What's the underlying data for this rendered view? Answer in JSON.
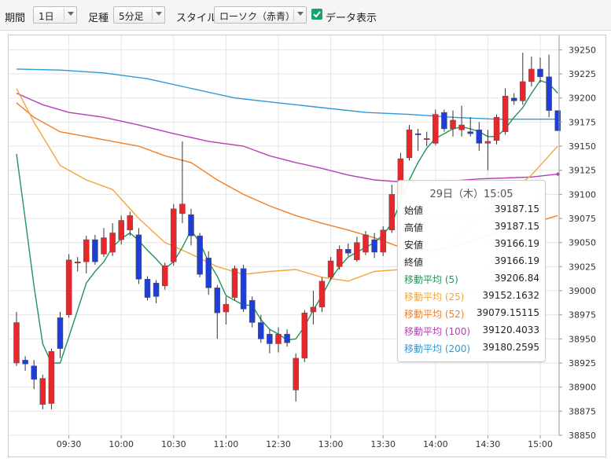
{
  "toolbar": {
    "period_label": "期間",
    "period_value": "1日",
    "ashi_label": "足種",
    "ashi_value": "5分足",
    "style_label": "スタイル",
    "style_value": "ローソク（赤青）",
    "data_display_label": "データ表示",
    "data_display_checked": true
  },
  "colors": {
    "up": "#e8262b",
    "down": "#1f3ed6",
    "ma5": "#21935a",
    "ma25": "#f2a53a",
    "ma52": "#f07f27",
    "ma100": "#b63fb6",
    "ma200": "#2d98da"
  },
  "tooltip": {
    "title": "29日（木）15:05",
    "rows": [
      {
        "label": "始値",
        "value": "39187.15"
      },
      {
        "label": "高値",
        "value": "39187.15"
      },
      {
        "label": "安値",
        "value": "39166.19"
      },
      {
        "label": "終値",
        "value": "39166.19"
      },
      {
        "label": "移動平均 (5)",
        "value": "39206.84"
      },
      {
        "label": "移動平均 (25)",
        "value": "39152.1632"
      },
      {
        "label": "移動平均 (52)",
        "value": "39079.15115"
      },
      {
        "label": "移動平均 (100)",
        "value": "39120.4033"
      },
      {
        "label": "移動平均 (200)",
        "value": "39180.2595"
      }
    ]
  },
  "chart_data": {
    "type": "candlestick",
    "interval": "5分足",
    "ylim": [
      38850,
      39265
    ],
    "y_ticks": [
      38850,
      38875,
      38900,
      38925,
      38950,
      38975,
      39000,
      39025,
      39050,
      39075,
      39100,
      39125,
      39150,
      39175,
      39200,
      39225,
      39250
    ],
    "x_ticks": [
      {
        "label": "09:30",
        "bar": 6
      },
      {
        "label": "10:00",
        "bar": 12
      },
      {
        "label": "10:30",
        "bar": 18
      },
      {
        "label": "11:00",
        "bar": 24
      },
      {
        "label": "12:30",
        "bar": 30
      },
      {
        "label": "13:00",
        "bar": 36
      },
      {
        "label": "13:30",
        "bar": 42
      },
      {
        "label": "14:00",
        "bar": 48
      },
      {
        "label": "14:30",
        "bar": 54
      },
      {
        "label": "15:00",
        "bar": 60
      }
    ],
    "candles": [
      {
        "o": 38925,
        "h": 38978,
        "l": 38922,
        "c": 38967
      },
      {
        "o": 38928,
        "h": 38932,
        "l": 38917,
        "c": 38924
      },
      {
        "o": 38922,
        "h": 38928,
        "l": 38898,
        "c": 38908
      },
      {
        "o": 38882,
        "h": 38913,
        "l": 38877,
        "c": 38909
      },
      {
        "o": 38883,
        "h": 38940,
        "l": 38877,
        "c": 38937
      },
      {
        "o": 38972,
        "h": 38978,
        "l": 38930,
        "c": 38940
      },
      {
        "o": 38975,
        "h": 39038,
        "l": 38972,
        "c": 39032
      },
      {
        "o": 39029,
        "h": 39035,
        "l": 39020,
        "c": 39030
      },
      {
        "o": 39030,
        "h": 39057,
        "l": 39018,
        "c": 39053
      },
      {
        "o": 39053,
        "h": 39058,
        "l": 39027,
        "c": 39030
      },
      {
        "o": 39038,
        "h": 39065,
        "l": 39035,
        "c": 39055
      },
      {
        "o": 39040,
        "h": 39070,
        "l": 39036,
        "c": 39060
      },
      {
        "o": 39053,
        "h": 39078,
        "l": 39048,
        "c": 39073
      },
      {
        "o": 39063,
        "h": 39082,
        "l": 39057,
        "c": 39078
      },
      {
        "o": 39058,
        "h": 39065,
        "l": 39007,
        "c": 39012
      },
      {
        "o": 39012,
        "h": 39015,
        "l": 38990,
        "c": 38993
      },
      {
        "o": 39008,
        "h": 39011,
        "l": 38987,
        "c": 38994
      },
      {
        "o": 39005,
        "h": 39029,
        "l": 39001,
        "c": 39026
      },
      {
        "o": 39030,
        "h": 39090,
        "l": 39026,
        "c": 39085
      },
      {
        "o": 39080,
        "h": 39155,
        "l": 39070,
        "c": 39090
      },
      {
        "o": 39079,
        "h": 39085,
        "l": 39047,
        "c": 39057
      },
      {
        "o": 39057,
        "h": 39060,
        "l": 39014,
        "c": 39017
      },
      {
        "o": 39034,
        "h": 39041,
        "l": 38996,
        "c": 39003
      },
      {
        "o": 39003,
        "h": 39006,
        "l": 38950,
        "c": 38977
      },
      {
        "o": 38978,
        "h": 38994,
        "l": 38965,
        "c": 38986
      },
      {
        "o": 38993,
        "h": 39026,
        "l": 38990,
        "c": 39023
      },
      {
        "o": 39023,
        "h": 39027,
        "l": 38978,
        "c": 38981
      },
      {
        "o": 38990,
        "h": 38994,
        "l": 38962,
        "c": 38967
      },
      {
        "o": 38967,
        "h": 38975,
        "l": 38946,
        "c": 38950
      },
      {
        "o": 38955,
        "h": 38960,
        "l": 38935,
        "c": 38945
      },
      {
        "o": 38945,
        "h": 38962,
        "l": 38936,
        "c": 38955
      },
      {
        "o": 38955,
        "h": 38960,
        "l": 38942,
        "c": 38946
      },
      {
        "o": 38897,
        "h": 38935,
        "l": 38885,
        "c": 38930
      },
      {
        "o": 38930,
        "h": 38980,
        "l": 38926,
        "c": 38977
      },
      {
        "o": 38978,
        "h": 39000,
        "l": 38965,
        "c": 38983
      },
      {
        "o": 38983,
        "h": 39014,
        "l": 38978,
        "c": 39010
      },
      {
        "o": 39014,
        "h": 39035,
        "l": 39011,
        "c": 39031
      },
      {
        "o": 39025,
        "h": 39047,
        "l": 39022,
        "c": 39043
      },
      {
        "o": 39043,
        "h": 39049,
        "l": 39036,
        "c": 39039
      },
      {
        "o": 39032,
        "h": 39056,
        "l": 39030,
        "c": 39050
      },
      {
        "o": 39040,
        "h": 39062,
        "l": 39037,
        "c": 39058
      },
      {
        "o": 39053,
        "h": 39060,
        "l": 39034,
        "c": 39040
      },
      {
        "o": 39040,
        "h": 39067,
        "l": 39036,
        "c": 39063
      },
      {
        "o": 39063,
        "h": 39110,
        "l": 39060,
        "c": 39100
      },
      {
        "o": 39100,
        "h": 39143,
        "l": 39098,
        "c": 39137
      },
      {
        "o": 39138,
        "h": 39172,
        "l": 39135,
        "c": 39167
      },
      {
        "o": 39163,
        "h": 39168,
        "l": 39145,
        "c": 39162
      },
      {
        "o": 39157,
        "h": 39165,
        "l": 39150,
        "c": 39158
      },
      {
        "o": 39153,
        "h": 39188,
        "l": 39151,
        "c": 39183
      },
      {
        "o": 39185,
        "h": 39188,
        "l": 39165,
        "c": 39168
      },
      {
        "o": 39168,
        "h": 39187,
        "l": 39160,
        "c": 39177
      },
      {
        "o": 39167,
        "h": 39192,
        "l": 39160,
        "c": 39172
      },
      {
        "o": 39165,
        "h": 39180,
        "l": 39160,
        "c": 39163
      },
      {
        "o": 39167,
        "h": 39175,
        "l": 39145,
        "c": 39153
      },
      {
        "o": 39153,
        "h": 39167,
        "l": 39125,
        "c": 39155
      },
      {
        "o": 39156,
        "h": 39183,
        "l": 39152,
        "c": 39180
      },
      {
        "o": 39165,
        "h": 39210,
        "l": 39162,
        "c": 39202
      },
      {
        "o": 39200,
        "h": 39205,
        "l": 39193,
        "c": 39197
      },
      {
        "o": 39197,
        "h": 39247,
        "l": 39193,
        "c": 39217
      },
      {
        "o": 39217,
        "h": 39243,
        "l": 39212,
        "c": 39230
      },
      {
        "o": 39230,
        "h": 39242,
        "l": 39216,
        "c": 39222
      },
      {
        "o": 39222,
        "h": 39245,
        "l": 39180,
        "c": 39187
      },
      {
        "o": 39187,
        "h": 39187,
        "l": 39166,
        "c": 39166
      }
    ],
    "moving_averages": [
      {
        "name": "移動平均 (5)",
        "color": "#21935a",
        "points": [
          [
            0,
            39142
          ],
          [
            1,
            39074
          ],
          [
            2,
            39005
          ],
          [
            3,
            38945
          ],
          [
            4,
            38925
          ],
          [
            5,
            38925
          ],
          [
            6,
            38952
          ],
          [
            7,
            38980
          ],
          [
            8,
            39008
          ],
          [
            9,
            39020
          ],
          [
            10,
            39030
          ],
          [
            11,
            39045
          ],
          [
            12,
            39054
          ],
          [
            13,
            39060
          ],
          [
            14,
            39052
          ],
          [
            15,
            39042
          ],
          [
            16,
            39033
          ],
          [
            17,
            39023
          ],
          [
            18,
            39030
          ],
          [
            19,
            39045
          ],
          [
            20,
            39063
          ],
          [
            21,
            39050
          ],
          [
            22,
            39030
          ],
          [
            23,
            39015
          ],
          [
            24,
            38995
          ],
          [
            25,
            38990
          ],
          [
            26,
            38985
          ],
          [
            27,
            38985
          ],
          [
            28,
            38970
          ],
          [
            29,
            38960
          ],
          [
            30,
            38955
          ],
          [
            31,
            38949
          ],
          [
            32,
            38950
          ],
          [
            33,
            38963
          ],
          [
            34,
            38980
          ],
          [
            35,
            38995
          ],
          [
            36,
            39012
          ],
          [
            37,
            39025
          ],
          [
            38,
            39035
          ],
          [
            39,
            39040
          ],
          [
            40,
            39045
          ],
          [
            41,
            39050
          ],
          [
            42,
            39058
          ],
          [
            43,
            39070
          ],
          [
            44,
            39092
          ],
          [
            45,
            39115
          ],
          [
            46,
            39133
          ],
          [
            47,
            39148
          ],
          [
            48,
            39158
          ],
          [
            49,
            39163
          ],
          [
            50,
            39168
          ],
          [
            51,
            39170
          ],
          [
            52,
            39168
          ],
          [
            53,
            39165
          ],
          [
            54,
            39160
          ],
          [
            55,
            39160
          ],
          [
            56,
            39168
          ],
          [
            57,
            39180
          ],
          [
            58,
            39190
          ],
          [
            59,
            39205
          ],
          [
            60,
            39218
          ],
          [
            61,
            39215
          ],
          [
            62,
            39205
          ]
        ]
      },
      {
        "name": "移動平均 (25)",
        "color": "#f2a53a",
        "points": [
          [
            0,
            39210
          ],
          [
            2,
            39175
          ],
          [
            5,
            39130
          ],
          [
            8,
            39115
          ],
          [
            11,
            39105
          ],
          [
            14,
            39075
          ],
          [
            17,
            39050
          ],
          [
            20,
            39038
          ],
          [
            23,
            39025
          ],
          [
            26,
            39017
          ],
          [
            29,
            39020
          ],
          [
            32,
            39022
          ],
          [
            35,
            39014
          ],
          [
            38,
            39010
          ],
          [
            41,
            39020
          ],
          [
            44,
            39022
          ],
          [
            47,
            39035
          ],
          [
            50,
            39050
          ],
          [
            53,
            39075
          ],
          [
            56,
            39098
          ],
          [
            59,
            39120
          ],
          [
            61,
            39140
          ],
          [
            62,
            39150
          ]
        ]
      },
      {
        "name": "移動平均 (52)",
        "color": "#f07f27",
        "points": [
          [
            0,
            39195
          ],
          [
            2,
            39180
          ],
          [
            5,
            39165
          ],
          [
            8,
            39160
          ],
          [
            11,
            39155
          ],
          [
            14,
            39150
          ],
          [
            17,
            39140
          ],
          [
            20,
            39133
          ],
          [
            23,
            39115
          ],
          [
            26,
            39100
          ],
          [
            29,
            39088
          ],
          [
            32,
            39078
          ],
          [
            35,
            39070
          ],
          [
            38,
            39063
          ],
          [
            41,
            39055
          ],
          [
            44,
            39045
          ],
          [
            47,
            39042
          ],
          [
            50,
            39045
          ],
          [
            53,
            39055
          ],
          [
            56,
            39062
          ],
          [
            59,
            39070
          ],
          [
            62,
            39078
          ]
        ]
      },
      {
        "name": "移動平均 (100)",
        "color": "#b63fb6",
        "points": [
          [
            0,
            39205
          ],
          [
            3,
            39193
          ],
          [
            6,
            39185
          ],
          [
            10,
            39180
          ],
          [
            14,
            39172
          ],
          [
            18,
            39163
          ],
          [
            22,
            39155
          ],
          [
            26,
            39150
          ],
          [
            29,
            39140
          ],
          [
            32,
            39133
          ],
          [
            35,
            39127
          ],
          [
            38,
            39120
          ],
          [
            41,
            39115
          ],
          [
            44,
            39113
          ],
          [
            47,
            39113
          ],
          [
            50,
            39114
          ],
          [
            53,
            39116
          ],
          [
            56,
            39117
          ],
          [
            59,
            39118
          ],
          [
            62,
            39121
          ]
        ]
      },
      {
        "name": "移動平均 (200)",
        "color": "#2d98da",
        "points": [
          [
            0,
            39230
          ],
          [
            5,
            39229
          ],
          [
            10,
            39226
          ],
          [
            15,
            39220
          ],
          [
            20,
            39210
          ],
          [
            25,
            39200
          ],
          [
            30,
            39195
          ],
          [
            35,
            39190
          ],
          [
            40,
            39185
          ],
          [
            45,
            39183
          ],
          [
            50,
            39180
          ],
          [
            55,
            39178
          ],
          [
            60,
            39178
          ],
          [
            62,
            39178
          ]
        ]
      }
    ]
  }
}
